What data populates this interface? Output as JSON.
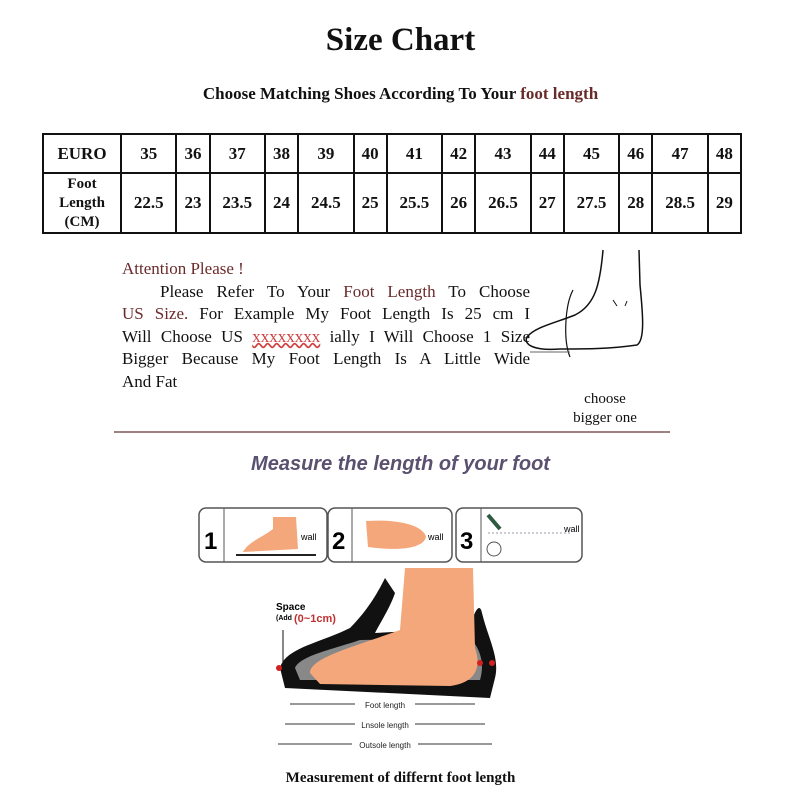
{
  "title": "Size Chart",
  "subtitle": {
    "prefix": "Choose Matching Shoes According To Your",
    "highlight": "foot length"
  },
  "size_table": {
    "euro_label": "EURO",
    "foot_label": [
      "Foot",
      "Length",
      "(CM)"
    ],
    "euro": [
      "35",
      "36",
      "37",
      "38",
      "39",
      "40",
      "41",
      "42",
      "43",
      "44",
      "45",
      "46",
      "47",
      "48"
    ],
    "foot_length_cm": [
      "22.5",
      "23",
      "23.5",
      "24",
      "24.5",
      "25",
      "25.5",
      "26",
      "26.5",
      "27",
      "27.5",
      "28",
      "28.5",
      "29"
    ]
  },
  "attention": {
    "heading": "Attention Please !",
    "l1a": "Please Refer To Your",
    "l1b": "Foot Length",
    "l1c": "To Choose",
    "l2a": "US Size.",
    "l2b": "For Example My Foot Length Is 25 cm I",
    "l3a": "Will Choose US",
    "l3b": "xxxxxxxx",
    "l3c": "ially I Will Choose 1 Size",
    "l4": "Bigger Because My Foot Length Is A Little Wide",
    "l5": "And Fat"
  },
  "choose_note": [
    "choose",
    "bigger one"
  ],
  "measure_heading": "Measure the length of your foot",
  "steps": [
    {
      "num": "1",
      "label": "wall"
    },
    {
      "num": "2",
      "label": "wall"
    },
    {
      "num": "3",
      "label": "wall"
    }
  ],
  "shoe_diagram": {
    "space_label": "Space",
    "space_add": "(Add",
    "space_value": "(0~1cm)",
    "foot_length": "Foot length",
    "insole_length": "Lnsole length",
    "outsole_length": "Outsole length"
  },
  "caption": "Measurement of differnt foot length",
  "colors": {
    "accent_text": "#6b2a2a",
    "heading": "#5a5070",
    "skin": "#f4a77a",
    "divider": "#a08080"
  }
}
